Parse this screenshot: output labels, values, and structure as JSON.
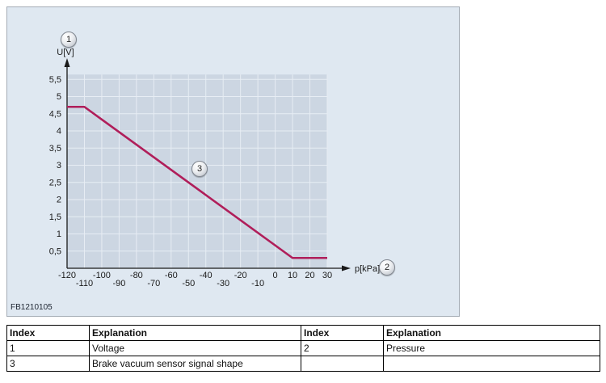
{
  "figure": {
    "code": "FB1210105",
    "badge_1": "1",
    "badge_2": "2",
    "badge_3": "3"
  },
  "chart_data": {
    "type": "line",
    "title": "",
    "xlabel": "p[kPa]",
    "ylabel": "U[V]",
    "xlim": [
      -120,
      30
    ],
    "ylim": [
      0,
      5.5
    ],
    "grid": true,
    "legend_position": "none",
    "line_color": "#b01e5a",
    "plot_bg": "#ccd6e2",
    "grid_color": "#e7edf4",
    "axis_color": "#1a1a1a",
    "x_ticks": [
      -120,
      -110,
      -100,
      -90,
      -80,
      -70,
      -60,
      -50,
      -40,
      -30,
      -20,
      -10,
      0,
      10,
      20,
      30
    ],
    "x_tick_rows": [
      0,
      1,
      0,
      1,
      0,
      1,
      0,
      1,
      0,
      1,
      0,
      1,
      0,
      0,
      0,
      0
    ],
    "y_ticks": [
      0.5,
      1,
      1.5,
      2,
      2.5,
      3,
      3.5,
      4,
      4.5,
      5,
      5.5
    ],
    "y_tick_labels": [
      "0,5",
      "1",
      "1,5",
      "2",
      "2,5",
      "3",
      "3,5",
      "4",
      "4,5",
      "5",
      "5,5"
    ],
    "series": [
      {
        "name": "Brake vacuum sensor signal shape",
        "x": [
          -120,
          -110,
          10,
          30
        ],
        "y": [
          4.7,
          4.7,
          0.3,
          0.3
        ]
      }
    ]
  },
  "table": {
    "headers": [
      "Index",
      "Explanation",
      "Index",
      "Explanation"
    ],
    "rows": [
      [
        "1",
        "Voltage",
        "2",
        "Pressure"
      ],
      [
        "3",
        "Brake vacuum sensor signal shape",
        "",
        ""
      ]
    ]
  }
}
